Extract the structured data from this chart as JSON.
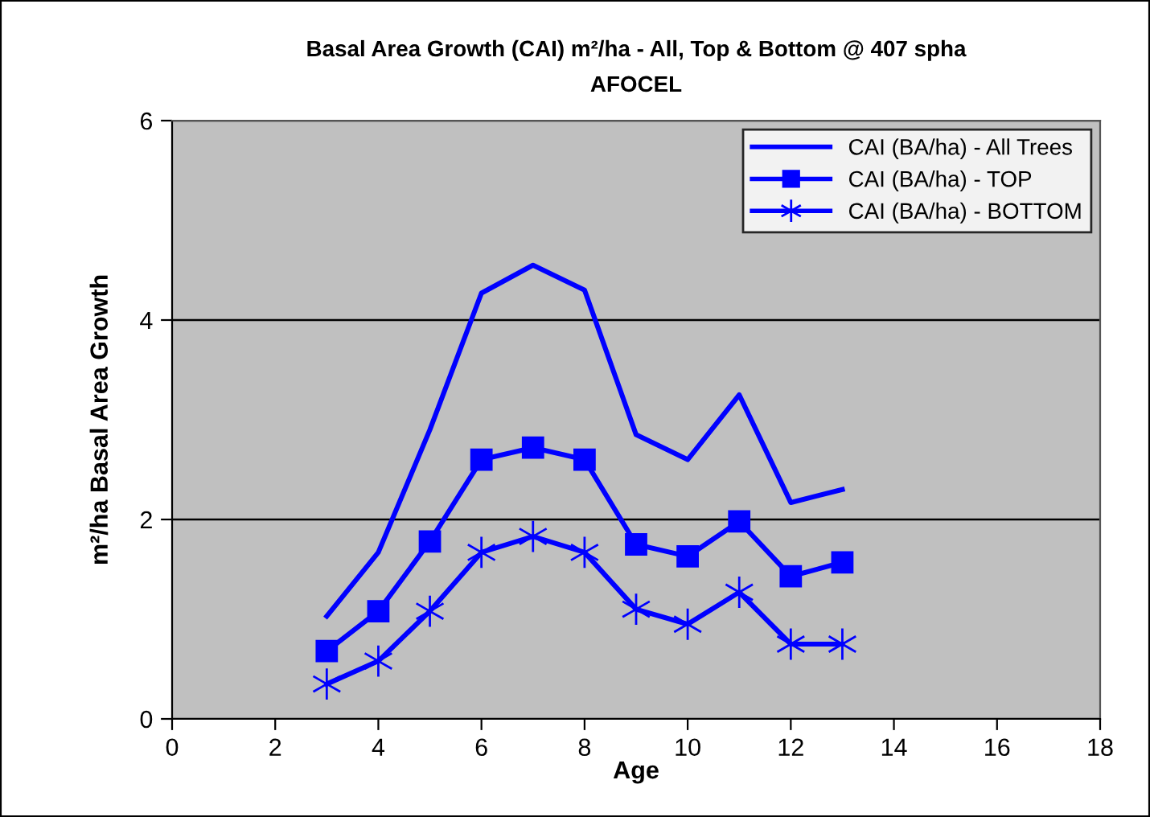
{
  "chart_data": {
    "type": "line",
    "title": "Basal Area Growth (CAI) m²/ha - All, Top & Bottom @ 407 spha",
    "subtitle": "AFOCEL",
    "xlabel": "Age",
    "ylabel": "m²/ha Basal Area Growth",
    "x": [
      3,
      4,
      5,
      6,
      7,
      8,
      9,
      10,
      11,
      12,
      13
    ],
    "series": [
      {
        "name": "CAI (BA/ha) - All Trees",
        "color": "#0000ff",
        "marker": "none",
        "values": [
          1.03,
          1.67,
          2.9,
          4.27,
          4.55,
          4.3,
          2.85,
          2.6,
          3.25,
          2.17,
          2.3
        ]
      },
      {
        "name": "CAI (BA/ha) - TOP",
        "color": "#0000ff",
        "marker": "square",
        "values": [
          0.68,
          1.08,
          1.78,
          2.6,
          2.72,
          2.6,
          1.75,
          1.63,
          1.98,
          1.43,
          1.57
        ]
      },
      {
        "name": "CAI (BA/ha) - BOTTOM",
        "color": "#0000ff",
        "marker": "cross",
        "values": [
          0.35,
          0.58,
          1.08,
          1.67,
          1.83,
          1.67,
          1.1,
          0.95,
          1.27,
          0.75,
          0.75
        ]
      }
    ],
    "xlim": [
      0,
      18
    ],
    "xticks": [
      0,
      2,
      4,
      6,
      8,
      10,
      12,
      14,
      16,
      18
    ],
    "ylim": [
      0,
      6
    ],
    "yticks": [
      0,
      2,
      4,
      6
    ],
    "grid": "y",
    "legend": "top right"
  }
}
